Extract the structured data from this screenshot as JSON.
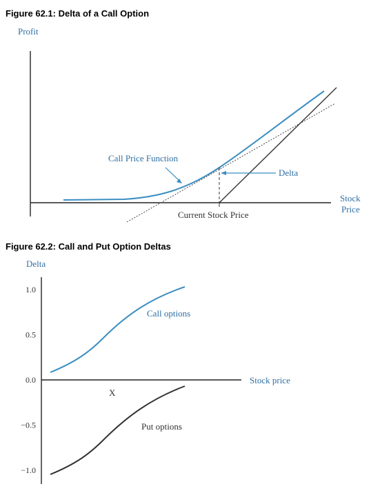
{
  "figures": {
    "fig1_title": "Figure 62.1: Delta of a Call Option",
    "fig2_title": "Figure 62.2: Call and Put Option Deltas"
  },
  "colors": {
    "curve_blue": "#3b8ec1",
    "label_blue": "#2f6fa3",
    "black": "#222222"
  },
  "chart_data": [
    {
      "type": "line",
      "title": "Figure 62.1: Delta of a Call Option",
      "ylabel": "Profit",
      "xlabel": "Stock Price",
      "x_tick_labels": [
        "Current Stock Price"
      ],
      "annotations": [
        "Call Price Function",
        "Delta"
      ],
      "grid": false,
      "series": [
        {
          "name": "Call Price Function",
          "x": [
            0.1,
            0.2,
            0.3,
            0.4,
            0.5,
            0.55,
            0.6,
            0.7,
            0.8,
            0.9,
            0.95
          ],
          "y": [
            0.02,
            0.025,
            0.04,
            0.07,
            0.13,
            0.18,
            0.25,
            0.42,
            0.6,
            0.78,
            0.87
          ]
        }
      ]
    },
    {
      "type": "line",
      "title": "Figure 62.2: Call and Put Option Deltas",
      "ylabel": "Delta",
      "xlabel": "Stock price",
      "x_tick_labels": [
        "X"
      ],
      "yticks": [
        "1.0",
        "0.5",
        "0.0",
        "−0.5",
        "−1.0"
      ],
      "ylim": [
        -1.0,
        1.0
      ],
      "grid": false,
      "series": [
        {
          "name": "Call options",
          "x": [
            0,
            0.2,
            0.4,
            0.5,
            0.6,
            0.8,
            1.0
          ],
          "y": [
            0.1,
            0.22,
            0.38,
            0.5,
            0.66,
            0.86,
            1.0
          ]
        },
        {
          "name": "Put options",
          "x": [
            0,
            0.2,
            0.4,
            0.5,
            0.6,
            0.8,
            1.0
          ],
          "y": [
            -0.9,
            -0.78,
            -0.62,
            -0.5,
            -0.34,
            -0.14,
            0.0
          ]
        }
      ]
    }
  ]
}
